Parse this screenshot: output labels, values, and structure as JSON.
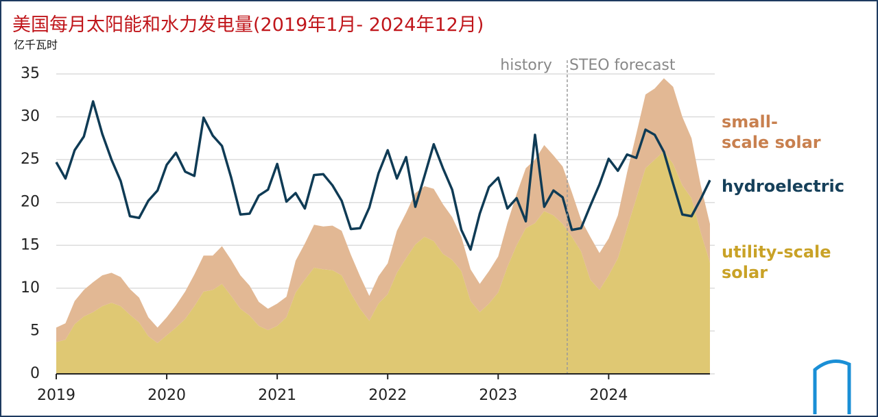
{
  "chart_data": {
    "type": "stacked_area_line",
    "title": "美国每月太阳能和水力发电量(2019年1月- 2024年12月)",
    "subtitle": "亿千瓦时",
    "annotations": [
      "history",
      "STEO forecast"
    ],
    "categories": [
      "2019",
      null,
      null,
      null,
      null,
      null,
      null,
      null,
      null,
      null,
      null,
      null,
      "2020",
      null,
      null,
      null,
      null,
      null,
      null,
      null,
      null,
      null,
      null,
      null,
      "2021",
      null,
      null,
      null,
      null,
      null,
      null,
      null,
      null,
      null,
      null,
      null,
      "2022",
      null,
      null,
      null,
      null,
      null,
      null,
      null,
      null,
      null,
      null,
      null,
      "2023",
      null,
      null,
      null,
      null,
      null,
      null,
      null,
      null,
      null,
      null,
      null,
      "2024",
      null,
      null,
      null,
      null,
      null,
      null,
      null,
      null,
      null,
      null,
      null
    ],
    "series": [
      {
        "name": "utility-scale solar",
        "color": "#dfc873",
        "label_color": "#c9a227",
        "kind": "area",
        "values": [
          3.7,
          4.0,
          5.8,
          6.7,
          7.2,
          7.9,
          8.3,
          7.9,
          6.9,
          6.0,
          4.4,
          3.6,
          4.5,
          5.4,
          6.4,
          7.9,
          9.6,
          9.8,
          10.5,
          9.1,
          7.6,
          6.8,
          5.6,
          5.1,
          5.6,
          6.6,
          9.5,
          11.0,
          12.4,
          12.2,
          12.1,
          11.5,
          9.4,
          7.6,
          6.2,
          8.2,
          9.3,
          11.8,
          13.5,
          15.1,
          16.0,
          15.5,
          14.0,
          13.3,
          12.0,
          8.5,
          7.2,
          8.2,
          9.5,
          12.5,
          15.0,
          17.0,
          17.6,
          19.0,
          18.5,
          17.5,
          16.0,
          14.3,
          11.0,
          9.8,
          11.5,
          13.5,
          17.0,
          20.5,
          24.0,
          25.0,
          26.0,
          24.5,
          22.0,
          20.5,
          16.5,
          13.0
        ]
      },
      {
        "name": "small-scale solar",
        "color": "#e2b894",
        "label_color": "#c8804f",
        "kind": "area",
        "values": [
          1.7,
          1.9,
          2.7,
          3.1,
          3.5,
          3.6,
          3.5,
          3.4,
          3.0,
          2.9,
          2.2,
          1.8,
          2.1,
          2.6,
          3.2,
          3.7,
          4.2,
          4.0,
          4.4,
          4.2,
          3.9,
          3.5,
          2.8,
          2.5,
          2.6,
          2.4,
          3.7,
          4.2,
          5.0,
          5.0,
          5.2,
          5.2,
          4.5,
          3.8,
          2.9,
          3.2,
          3.6,
          4.9,
          5.3,
          6.0,
          5.9,
          6.1,
          5.8,
          5.0,
          4.0,
          3.7,
          3.3,
          3.8,
          4.2,
          5.1,
          6.0,
          7.0,
          7.4,
          7.7,
          7.0,
          6.7,
          5.2,
          3.7,
          5.0,
          4.3,
          4.3,
          5.0,
          6.5,
          7.5,
          8.6,
          8.3,
          8.5,
          9.0,
          8.0,
          7.0,
          5.5,
          4.5
        ]
      },
      {
        "name": "hydroelectric",
        "color": "#0f3b55",
        "label_color": "#16405a",
        "kind": "line",
        "values": [
          24.7,
          22.8,
          26.1,
          27.7,
          31.8,
          28.0,
          25.0,
          22.5,
          18.4,
          18.2,
          20.2,
          21.4,
          24.4,
          25.8,
          23.6,
          23.1,
          29.9,
          27.8,
          26.6,
          22.9,
          18.6,
          18.7,
          20.8,
          21.5,
          24.5,
          20.1,
          21.1,
          19.3,
          23.2,
          23.3,
          22.0,
          20.2,
          16.9,
          17.0,
          19.4,
          23.4,
          26.1,
          22.8,
          25.3,
          19.5,
          23.1,
          26.8,
          24.0,
          21.5,
          16.8,
          14.5,
          18.7,
          21.8,
          22.9,
          19.3,
          20.5,
          17.8,
          27.9,
          19.5,
          21.4,
          20.6,
          16.8,
          17.0,
          19.6,
          22.1,
          25.1,
          23.7,
          25.6,
          25.2,
          28.5,
          27.9,
          25.9,
          22.2,
          18.6,
          18.4,
          20.4,
          22.6
        ]
      }
    ],
    "ylim": [
      0,
      35
    ],
    "yticks": [
      0,
      5,
      10,
      15,
      20,
      25,
      30,
      35
    ],
    "grid": true
  }
}
